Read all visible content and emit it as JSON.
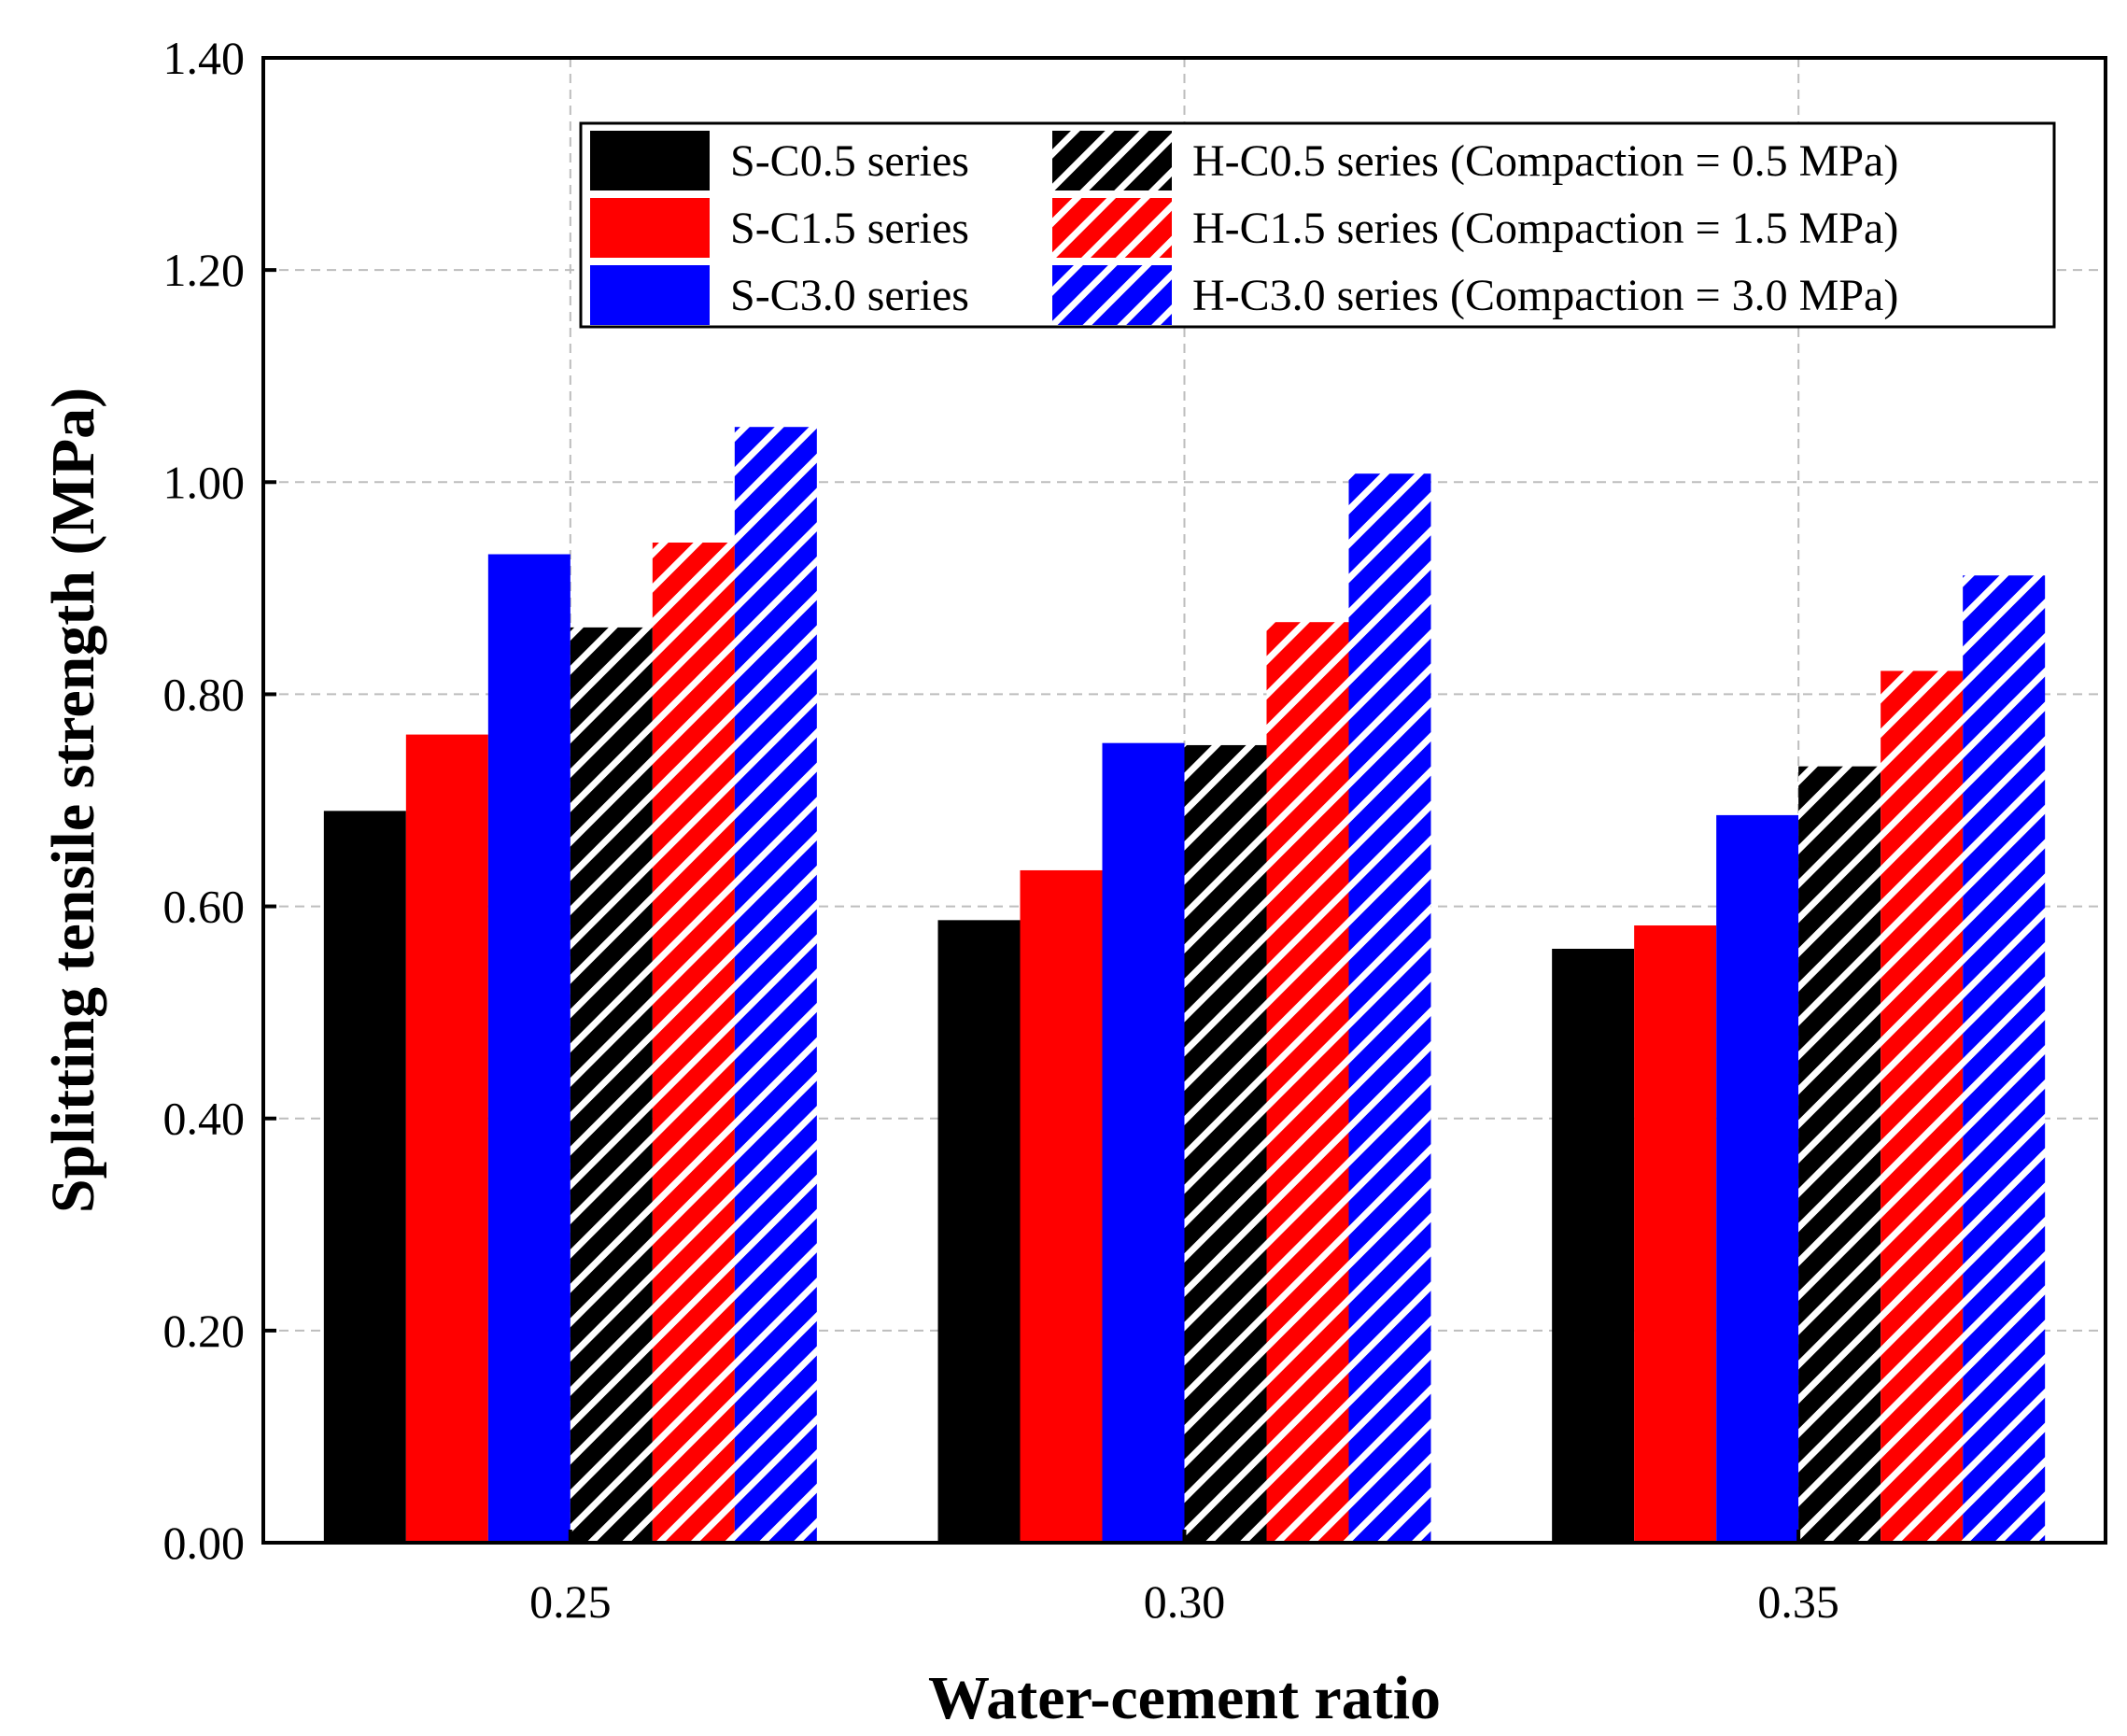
{
  "chart_data": {
    "type": "bar",
    "xlabel": "Water-cement ratio",
    "ylabel": "Splitting tensile strength (MPa)",
    "categories": [
      "0.25",
      "0.30",
      "0.35"
    ],
    "ylim": [
      0,
      1.4
    ],
    "yticks": [
      "0.00",
      "0.20",
      "0.40",
      "0.60",
      "0.80",
      "1.00",
      "1.20",
      "1.40"
    ],
    "grid": true,
    "legend_position": "top-right",
    "series": [
      {
        "name": "S-C0.5 series",
        "color": "#000000",
        "pattern": "solid",
        "values": [
          0.69,
          0.587,
          0.56
        ]
      },
      {
        "name": "S-C1.5 series",
        "color": "#ff0000",
        "pattern": "solid",
        "values": [
          0.762,
          0.634,
          0.582
        ]
      },
      {
        "name": "S-C3.0 series",
        "color": "#0000ff",
        "pattern": "solid",
        "values": [
          0.932,
          0.754,
          0.686
        ]
      },
      {
        "name": "H-C0.5 series (Compaction = 0.5 MPa)",
        "color": "#000000",
        "pattern": "hatch",
        "values": [
          0.863,
          0.752,
          0.732
        ]
      },
      {
        "name": "H-C1.5 series (Compaction = 1.5 MPa)",
        "color": "#ff0000",
        "pattern": "hatch",
        "values": [
          0.943,
          0.868,
          0.822
        ]
      },
      {
        "name": "H-C3.0 series (Compaction = 3.0 MPa)",
        "color": "#0000ff",
        "pattern": "hatch",
        "values": [
          1.052,
          1.008,
          0.912
        ]
      }
    ]
  }
}
